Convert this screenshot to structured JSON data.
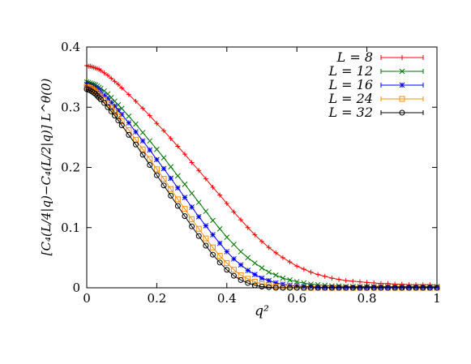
{
  "chart_data": {
    "type": "line",
    "xlabel": "q²",
    "ylabel": "[C₄(L/4|q)−C₄(L/2|q)] L^θ(0)",
    "xlim": [
      0,
      1
    ],
    "ylim": [
      0,
      0.4
    ],
    "x_ticks": [
      "0",
      "0.2",
      "0.4",
      "0.6",
      "0.8",
      "1"
    ],
    "y_ticks": [
      "0",
      "0.1",
      "0.2",
      "0.3",
      "0.4"
    ],
    "grid": false,
    "legend_position": "top-right",
    "series": [
      {
        "name": "L = 8",
        "color": "#ff0000",
        "marker": "plus",
        "x": [
          0,
          0.005,
          0.01,
          0.015,
          0.02,
          0.025,
          0.03,
          0.035,
          0.04,
          0.05,
          0.06,
          0.07,
          0.08,
          0.09,
          0.1,
          0.12,
          0.14,
          0.16,
          0.18,
          0.2,
          0.22,
          0.24,
          0.26,
          0.28,
          0.3,
          0.32,
          0.34,
          0.36,
          0.38,
          0.4,
          0.42,
          0.44,
          0.46,
          0.48,
          0.5,
          0.52,
          0.54,
          0.56,
          0.58,
          0.6,
          0.62,
          0.64,
          0.66,
          0.68,
          0.7,
          0.72,
          0.74,
          0.76,
          0.78,
          0.8,
          0.82,
          0.84,
          0.86,
          0.88,
          0.9,
          0.92,
          0.94,
          0.96,
          0.98,
          1.0
        ],
        "y": [
          0.369,
          0.368,
          0.368,
          0.367,
          0.366,
          0.365,
          0.364,
          0.363,
          0.361,
          0.357,
          0.353,
          0.348,
          0.343,
          0.338,
          0.332,
          0.321,
          0.31,
          0.298,
          0.286,
          0.273,
          0.261,
          0.248,
          0.235,
          0.222,
          0.208,
          0.195,
          0.181,
          0.167,
          0.154,
          0.14,
          0.126,
          0.113,
          0.1,
          0.088,
          0.077,
          0.067,
          0.058,
          0.05,
          0.043,
          0.036,
          0.031,
          0.026,
          0.022,
          0.019,
          0.016,
          0.014,
          0.012,
          0.011,
          0.01,
          0.009,
          0.008,
          0.007,
          0.007,
          0.006,
          0.006,
          0.005,
          0.005,
          0.005,
          0.005,
          0.004
        ]
      },
      {
        "name": "L = 12",
        "color": "#007400",
        "marker": "cross",
        "x": [
          0,
          0.005,
          0.01,
          0.015,
          0.02,
          0.025,
          0.03,
          0.035,
          0.04,
          0.05,
          0.06,
          0.07,
          0.08,
          0.09,
          0.1,
          0.12,
          0.14,
          0.16,
          0.18,
          0.2,
          0.22,
          0.24,
          0.26,
          0.28,
          0.3,
          0.32,
          0.34,
          0.36,
          0.38,
          0.4,
          0.42,
          0.44,
          0.46,
          0.48,
          0.5,
          0.52,
          0.54,
          0.56,
          0.58,
          0.6,
          0.62,
          0.64,
          0.66,
          0.68,
          0.7,
          0.72,
          0.74,
          0.76,
          0.78,
          0.8,
          0.82,
          0.84,
          0.86,
          0.88,
          0.9,
          0.92,
          0.94,
          0.96,
          0.98,
          1.0
        ],
        "y": [
          0.342,
          0.341,
          0.34,
          0.339,
          0.338,
          0.337,
          0.335,
          0.333,
          0.331,
          0.327,
          0.322,
          0.316,
          0.31,
          0.304,
          0.298,
          0.285,
          0.272,
          0.258,
          0.244,
          0.23,
          0.216,
          0.201,
          0.186,
          0.172,
          0.157,
          0.142,
          0.127,
          0.112,
          0.098,
          0.084,
          0.072,
          0.06,
          0.05,
          0.041,
          0.033,
          0.026,
          0.021,
          0.016,
          0.013,
          0.01,
          0.008,
          0.006,
          0.005,
          0.004,
          0.003,
          0.003,
          0.002,
          0.002,
          0.002,
          0.002,
          0.002,
          0.002,
          0.002,
          0.002,
          0.002,
          0.002,
          0.002,
          0.002,
          0.002,
          0.002
        ]
      },
      {
        "name": "L = 16",
        "color": "#0000ff",
        "marker": "star",
        "x": [
          0,
          0.005,
          0.01,
          0.015,
          0.02,
          0.025,
          0.03,
          0.035,
          0.04,
          0.05,
          0.06,
          0.07,
          0.08,
          0.09,
          0.1,
          0.12,
          0.14,
          0.16,
          0.18,
          0.2,
          0.22,
          0.24,
          0.26,
          0.28,
          0.3,
          0.32,
          0.34,
          0.36,
          0.38,
          0.4,
          0.42,
          0.44,
          0.46,
          0.48,
          0.5,
          0.52,
          0.54,
          0.56,
          0.58,
          0.6,
          0.62,
          0.64,
          0.66,
          0.68,
          0.7,
          0.72,
          0.74,
          0.76,
          0.78,
          0.8,
          0.82,
          0.84,
          0.86,
          0.88,
          0.9,
          0.92,
          0.94,
          0.96,
          0.98,
          1.0
        ],
        "y": [
          0.338,
          0.337,
          0.336,
          0.335,
          0.333,
          0.332,
          0.33,
          0.328,
          0.325,
          0.32,
          0.315,
          0.308,
          0.302,
          0.295,
          0.288,
          0.274,
          0.259,
          0.244,
          0.229,
          0.213,
          0.198,
          0.182,
          0.166,
          0.15,
          0.134,
          0.118,
          0.103,
          0.088,
          0.074,
          0.06,
          0.048,
          0.038,
          0.029,
          0.022,
          0.016,
          0.012,
          0.008,
          0.006,
          0.004,
          0.003,
          0.002,
          0.002,
          0.001,
          0.001,
          0.001,
          0.001,
          0.001,
          0.001,
          0.001,
          0.001,
          0.001,
          0.001,
          0.001,
          0.001,
          0.001,
          0.001,
          0.001,
          0.001,
          0.001,
          0.001
        ]
      },
      {
        "name": "L = 24",
        "color": "#ff8c00",
        "marker": "square",
        "x": [
          0,
          0.005,
          0.01,
          0.015,
          0.02,
          0.025,
          0.03,
          0.035,
          0.04,
          0.05,
          0.06,
          0.07,
          0.08,
          0.09,
          0.1,
          0.12,
          0.14,
          0.16,
          0.18,
          0.2,
          0.22,
          0.24,
          0.26,
          0.28,
          0.3,
          0.32,
          0.34,
          0.36,
          0.38,
          0.4,
          0.42,
          0.44,
          0.46,
          0.48,
          0.5,
          0.52,
          0.54,
          0.56,
          0.58,
          0.6,
          0.62,
          0.64,
          0.66,
          0.68,
          0.7,
          0.72,
          0.74,
          0.76,
          0.78,
          0.8,
          0.82,
          0.84,
          0.86,
          0.88,
          0.9,
          0.92,
          0.94,
          0.96,
          0.98,
          1.0
        ],
        "y": [
          0.334,
          0.333,
          0.332,
          0.33,
          0.328,
          0.326,
          0.324,
          0.321,
          0.318,
          0.312,
          0.306,
          0.299,
          0.292,
          0.285,
          0.277,
          0.262,
          0.246,
          0.23,
          0.214,
          0.197,
          0.181,
          0.164,
          0.147,
          0.131,
          0.114,
          0.098,
          0.082,
          0.067,
          0.053,
          0.041,
          0.03,
          0.021,
          0.015,
          0.01,
          0.006,
          0.004,
          0.002,
          0.001,
          0.001,
          0.001,
          0.0,
          0.0,
          0.0,
          0.0,
          0.0,
          0.0,
          0.0,
          0.0,
          0.0,
          0.0,
          0.0,
          0.0,
          0.0,
          0.0,
          0.0,
          0.0,
          0.0,
          0.0,
          0.0,
          0.0
        ]
      },
      {
        "name": "L = 32",
        "color": "#000000",
        "marker": "circle",
        "x": [
          0,
          0.005,
          0.01,
          0.015,
          0.02,
          0.025,
          0.03,
          0.035,
          0.04,
          0.05,
          0.06,
          0.07,
          0.08,
          0.09,
          0.1,
          0.12,
          0.14,
          0.16,
          0.18,
          0.2,
          0.22,
          0.24,
          0.26,
          0.28,
          0.3,
          0.32,
          0.34,
          0.36,
          0.38,
          0.4,
          0.42,
          0.44,
          0.46,
          0.48,
          0.5,
          0.52,
          0.54,
          0.56,
          0.58,
          0.6,
          0.62,
          0.64,
          0.66,
          0.68,
          0.7,
          0.72,
          0.74,
          0.76,
          0.78,
          0.8,
          0.82,
          0.84,
          0.86,
          0.88,
          0.9,
          0.92,
          0.94,
          0.96,
          0.98,
          1.0
        ],
        "y": [
          0.33,
          0.329,
          0.328,
          0.326,
          0.324,
          0.322,
          0.319,
          0.316,
          0.313,
          0.307,
          0.3,
          0.293,
          0.286,
          0.278,
          0.27,
          0.254,
          0.238,
          0.221,
          0.204,
          0.187,
          0.17,
          0.153,
          0.136,
          0.119,
          0.102,
          0.086,
          0.07,
          0.055,
          0.042,
          0.03,
          0.02,
          0.013,
          0.008,
          0.004,
          0.002,
          0.001,
          0.0,
          0.0,
          0.0,
          0.0,
          0.0,
          0.0,
          0.0,
          0.0,
          0.0,
          0.0,
          0.0,
          0.0,
          0.0,
          0.0,
          0.0,
          0.0,
          0.0,
          0.0,
          0.0,
          0.0,
          0.0,
          0.0,
          0.0,
          0.0
        ]
      }
    ]
  }
}
